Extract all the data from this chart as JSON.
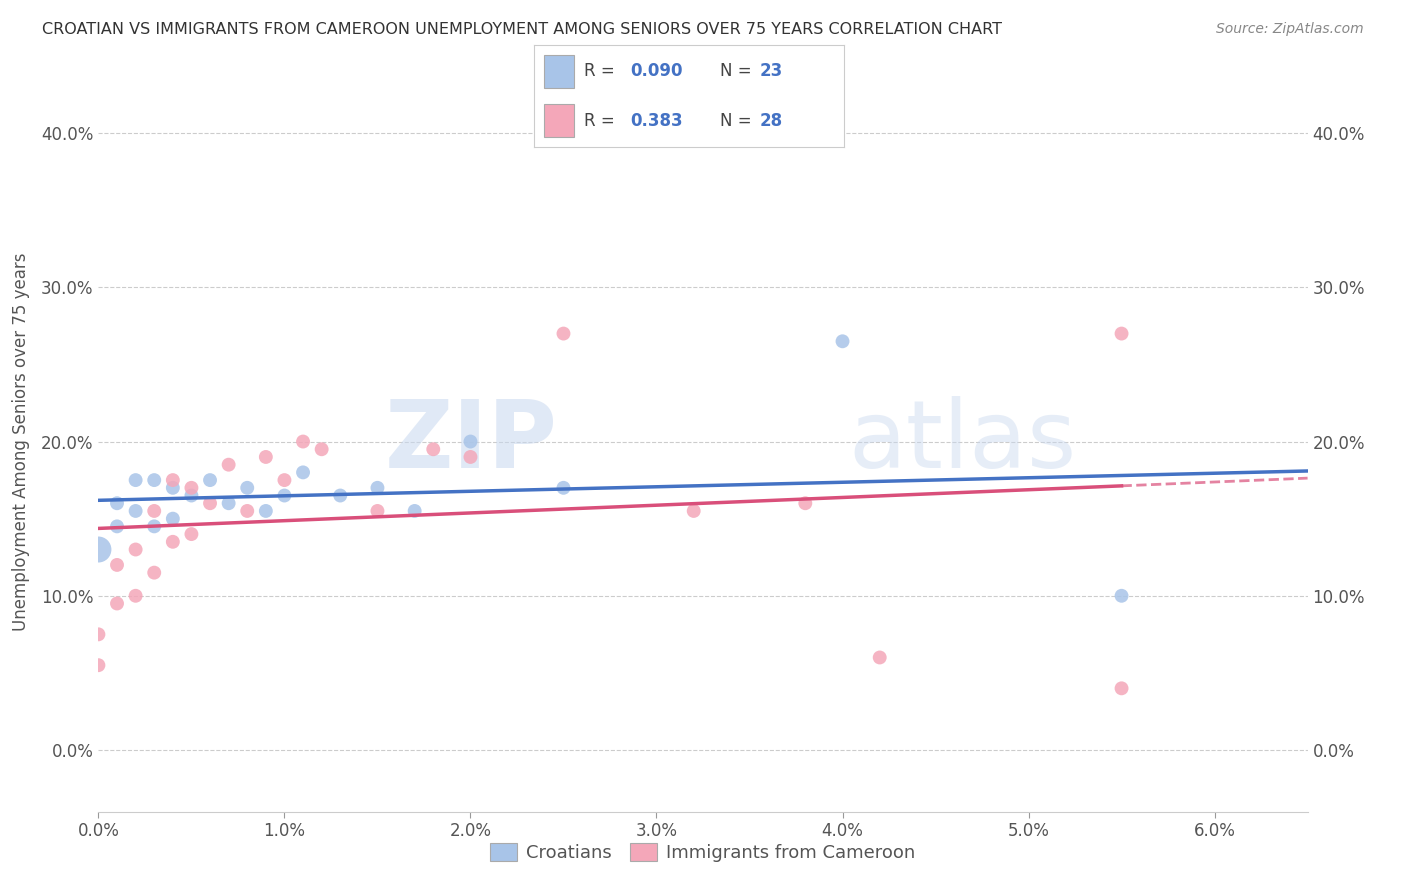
{
  "title": "CROATIAN VS IMMIGRANTS FROM CAMEROON UNEMPLOYMENT AMONG SENIORS OVER 75 YEARS CORRELATION CHART",
  "source": "Source: ZipAtlas.com",
  "ylabel": "Unemployment Among Seniors over 75 years",
  "xlim": [
    0.0,
    0.065
  ],
  "ylim": [
    -0.04,
    0.44
  ],
  "croatian_R": "0.090",
  "croatian_N": "23",
  "cameroon_R": "0.383",
  "cameroon_N": "28",
  "croatian_color": "#a8c4e8",
  "cameroon_color": "#f4a7b9",
  "trend_croatian_color": "#4472c4",
  "trend_cameroon_color": "#d94f7a",
  "background_color": "#ffffff",
  "croatian_x": [
    0.0,
    0.001,
    0.001,
    0.002,
    0.002,
    0.003,
    0.003,
    0.004,
    0.004,
    0.005,
    0.006,
    0.007,
    0.008,
    0.009,
    0.01,
    0.011,
    0.013,
    0.015,
    0.017,
    0.02,
    0.025,
    0.04,
    0.055
  ],
  "croatian_y": [
    0.13,
    0.145,
    0.16,
    0.155,
    0.175,
    0.145,
    0.175,
    0.15,
    0.17,
    0.165,
    0.175,
    0.16,
    0.17,
    0.155,
    0.165,
    0.18,
    0.165,
    0.17,
    0.155,
    0.2,
    0.17,
    0.265,
    0.1
  ],
  "croatian_size": [
    350,
    100,
    100,
    100,
    100,
    100,
    100,
    100,
    100,
    100,
    100,
    100,
    100,
    100,
    100,
    100,
    100,
    100,
    100,
    100,
    100,
    100,
    100
  ],
  "cameroon_x": [
    0.0,
    0.0,
    0.001,
    0.001,
    0.002,
    0.002,
    0.003,
    0.003,
    0.004,
    0.004,
    0.005,
    0.005,
    0.006,
    0.007,
    0.008,
    0.009,
    0.01,
    0.011,
    0.012,
    0.015,
    0.018,
    0.02,
    0.025,
    0.032,
    0.038,
    0.042,
    0.055,
    0.055
  ],
  "cameroon_y": [
    0.055,
    0.075,
    0.095,
    0.12,
    0.1,
    0.13,
    0.115,
    0.155,
    0.135,
    0.175,
    0.14,
    0.17,
    0.16,
    0.185,
    0.155,
    0.19,
    0.175,
    0.2,
    0.195,
    0.155,
    0.195,
    0.19,
    0.27,
    0.155,
    0.16,
    0.06,
    0.27,
    0.04
  ],
  "cameroon_size": [
    100,
    100,
    100,
    100,
    100,
    100,
    100,
    100,
    100,
    100,
    100,
    100,
    100,
    100,
    100,
    100,
    100,
    100,
    100,
    100,
    100,
    100,
    100,
    100,
    100,
    100,
    100,
    100
  ],
  "xtick_vals": [
    0.0,
    0.01,
    0.02,
    0.03,
    0.04,
    0.05,
    0.06
  ],
  "xtick_labels": [
    "0.0%",
    "1.0%",
    "2.0%",
    "3.0%",
    "4.0%",
    "5.0%",
    "6.0%"
  ],
  "ytick_vals": [
    0.0,
    0.1,
    0.2,
    0.3,
    0.4
  ],
  "ytick_labels": [
    "0.0%",
    "10.0%",
    "20.0%",
    "30.0%",
    "40.0%"
  ],
  "legend_labels": [
    "Croatians",
    "Immigrants from Cameroon"
  ]
}
